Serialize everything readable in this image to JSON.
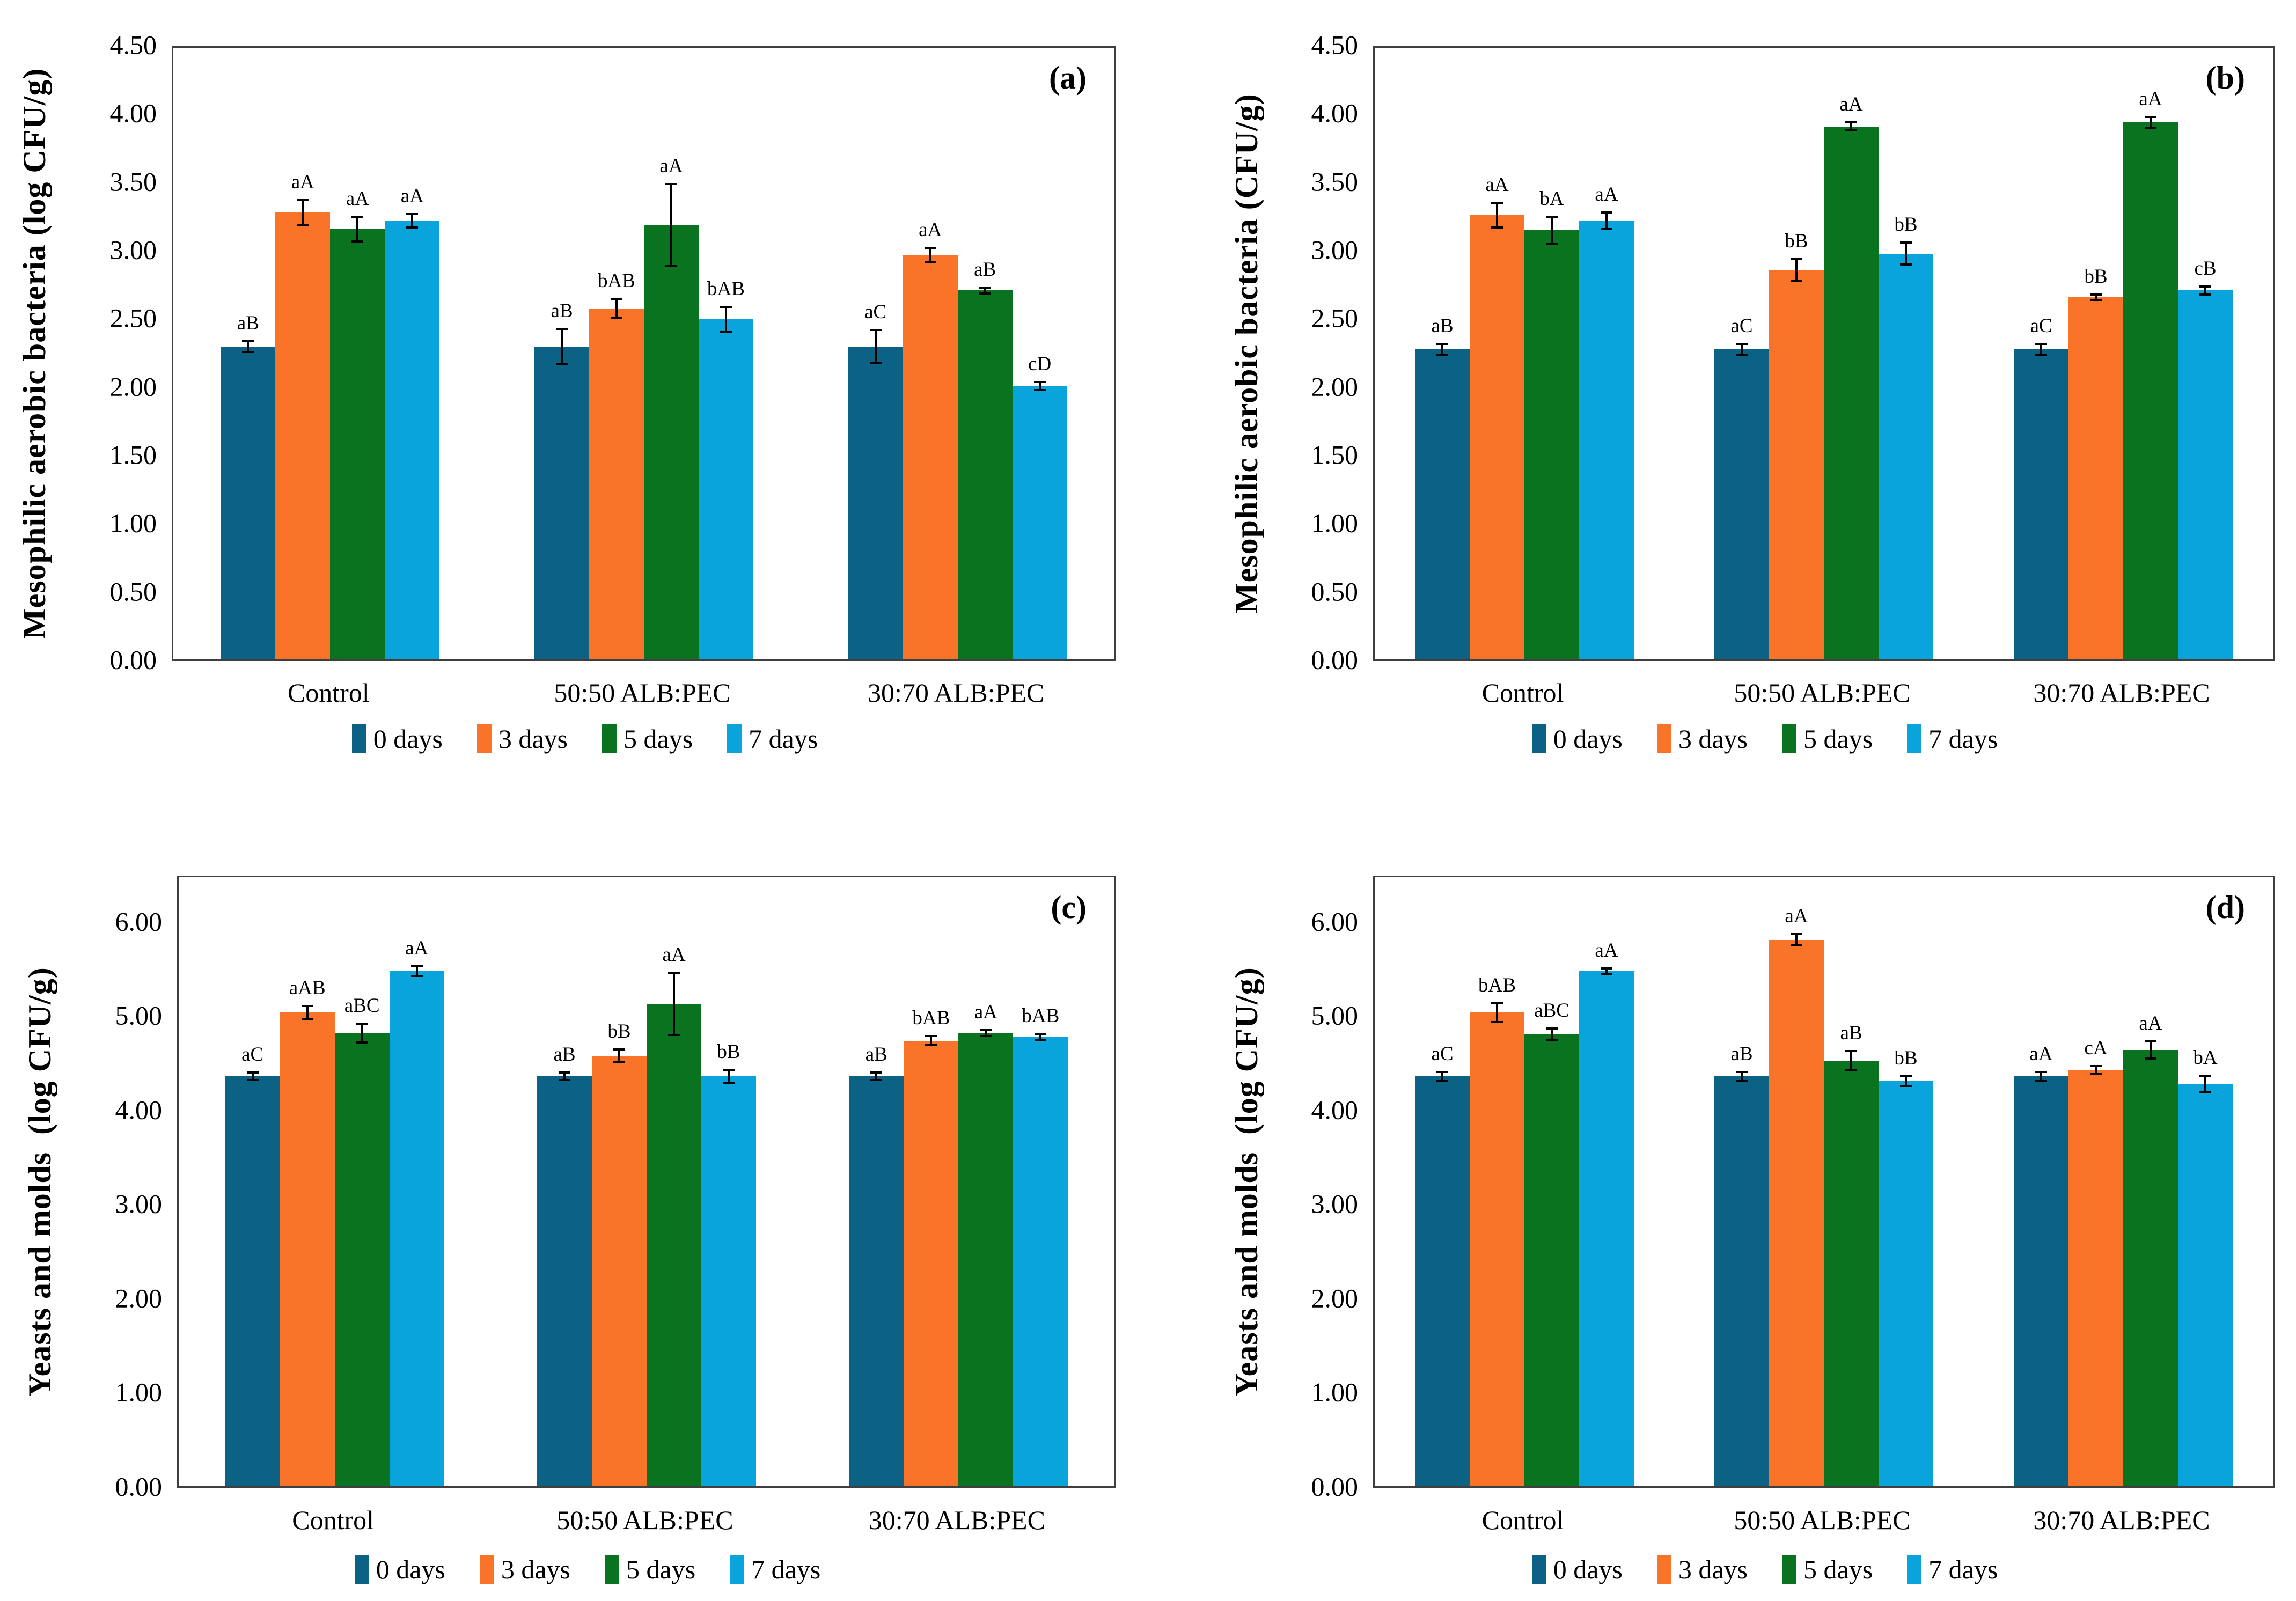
{
  "figure": {
    "background_color": "#ffffff",
    "frame_color": "#3f3f3f",
    "error_bar_color": "#000000"
  },
  "chart_data": [
    {
      "id": "a",
      "panel_label": "(a)",
      "type": "bar",
      "ylabel": "Mesophilic aerobic bacteria (log CFU/g)",
      "xlabel": "",
      "ylim": [
        0,
        4.5
      ],
      "ytick_values": [
        4.5,
        4.0,
        3.5,
        3.0,
        2.5,
        2.0,
        1.5,
        1.0,
        0.5,
        0.0
      ],
      "grid": false,
      "legend_position": "bottom",
      "categories": [
        "Control",
        "50:50 ALB:PEC",
        "30:70 ALB:PEC"
      ],
      "series": [
        {
          "name": "0 days",
          "color": "#0C6284",
          "values": [
            2.29,
            2.29,
            2.29
          ],
          "errors": [
            0.04,
            0.13,
            0.12
          ],
          "sig_labels": [
            "aB",
            "aB",
            "aC"
          ]
        },
        {
          "name": "3 days",
          "color": "#F97428",
          "values": [
            3.27,
            2.57,
            2.96
          ],
          "errors": [
            0.09,
            0.07,
            0.05
          ],
          "sig_labels": [
            "aA",
            "bAB",
            "aA"
          ]
        },
        {
          "name": "5 days",
          "color": "#097320",
          "values": [
            3.15,
            3.18,
            2.7
          ],
          "errors": [
            0.09,
            0.3,
            0.02
          ],
          "sig_labels": [
            "aA",
            "aA",
            "aB"
          ]
        },
        {
          "name": "7 days",
          "color": "#09A4DC",
          "values": [
            3.21,
            2.49,
            2.0
          ],
          "errors": [
            0.05,
            0.09,
            0.03
          ],
          "sig_labels": [
            "aA",
            "bAB",
            "cD"
          ]
        }
      ]
    },
    {
      "id": "b",
      "panel_label": "(b)",
      "type": "bar",
      "ylabel": "Mesophilic aerobic bacteria (CFU/g)",
      "xlabel": "",
      "ylim": [
        0,
        4.5
      ],
      "ytick_values": [
        4.5,
        4.0,
        3.5,
        3.0,
        2.5,
        2.0,
        1.5,
        1.0,
        0.5,
        0.0
      ],
      "grid": false,
      "legend_position": "bottom",
      "categories": [
        "Control",
        "50:50 ALB:PEC",
        "30:70 ALB:PEC"
      ],
      "series": [
        {
          "name": "0 days",
          "color": "#0C6284",
          "values": [
            2.27,
            2.27,
            2.27
          ],
          "errors": [
            0.04,
            0.04,
            0.04
          ],
          "sig_labels": [
            "aB",
            "aC",
            "aC"
          ]
        },
        {
          "name": "3 days",
          "color": "#F97428",
          "values": [
            3.25,
            2.85,
            2.65
          ],
          "errors": [
            0.09,
            0.08,
            0.02
          ],
          "sig_labels": [
            "aA",
            "bB",
            "bB"
          ]
        },
        {
          "name": "5 days",
          "color": "#097320",
          "values": [
            3.14,
            3.9,
            3.93
          ],
          "errors": [
            0.1,
            0.03,
            0.04
          ],
          "sig_labels": [
            "bA",
            "aA",
            "aA"
          ]
        },
        {
          "name": "7 days",
          "color": "#09A4DC",
          "values": [
            3.21,
            2.97,
            2.7
          ],
          "errors": [
            0.06,
            0.08,
            0.03
          ],
          "sig_labels": [
            "aA",
            "bB",
            "cB"
          ]
        }
      ]
    },
    {
      "id": "c",
      "panel_label": "(c)",
      "type": "bar",
      "ylabel": "Yeasts and molds  (log CFU/g)",
      "xlabel": "",
      "ylim": [
        0,
        6.5
      ],
      "ytick_values": [
        6.0,
        5.0,
        4.0,
        3.0,
        2.0,
        1.0,
        0.0
      ],
      "grid": false,
      "legend_position": "bottom",
      "categories": [
        "Control",
        "50:50 ALB:PEC",
        "30:70 ALB:PEC"
      ],
      "series": [
        {
          "name": "0 days",
          "color": "#0C6284",
          "values": [
            4.35,
            4.35,
            4.35
          ],
          "errors": [
            0.04,
            0.04,
            0.04
          ],
          "sig_labels": [
            "aC",
            "aB",
            "aB"
          ]
        },
        {
          "name": "3 days",
          "color": "#F97428",
          "values": [
            5.03,
            4.57,
            4.73
          ],
          "errors": [
            0.07,
            0.07,
            0.05
          ],
          "sig_labels": [
            "aAB",
            "bB",
            "bAB"
          ]
        },
        {
          "name": "5 days",
          "color": "#097320",
          "values": [
            4.81,
            5.12,
            4.81
          ],
          "errors": [
            0.1,
            0.33,
            0.03
          ],
          "sig_labels": [
            "aBC",
            "aA",
            "aA"
          ]
        },
        {
          "name": "7 days",
          "color": "#09A4DC",
          "values": [
            5.47,
            4.35,
            4.77
          ],
          "errors": [
            0.05,
            0.07,
            0.03
          ],
          "sig_labels": [
            "aA",
            "bB",
            "bAB"
          ]
        }
      ]
    },
    {
      "id": "d",
      "panel_label": "(d)",
      "type": "bar",
      "ylabel": "Yeasts and molds  (log CFU/g)",
      "xlabel": "",
      "ylim": [
        0,
        6.5
      ],
      "ytick_values": [
        6.0,
        5.0,
        4.0,
        3.0,
        2.0,
        1.0,
        0.0
      ],
      "grid": false,
      "legend_position": "bottom",
      "categories": [
        "Control",
        "50:50 ALB:PEC",
        "30:70 ALB:PEC"
      ],
      "series": [
        {
          "name": "0 days",
          "color": "#0C6284",
          "values": [
            4.35,
            4.35,
            4.35
          ],
          "errors": [
            0.05,
            0.05,
            0.05
          ],
          "sig_labels": [
            "aC",
            "aB",
            "aA"
          ]
        },
        {
          "name": "3 days",
          "color": "#F97428",
          "values": [
            5.03,
            5.8,
            4.42
          ],
          "errors": [
            0.1,
            0.06,
            0.04
          ],
          "sig_labels": [
            "bAB",
            "aA",
            "cA"
          ]
        },
        {
          "name": "5 days",
          "color": "#097320",
          "values": [
            4.8,
            4.52,
            4.63
          ],
          "errors": [
            0.06,
            0.1,
            0.09
          ],
          "sig_labels": [
            "aBC",
            "aB",
            "aA"
          ]
        },
        {
          "name": "7 days",
          "color": "#09A4DC",
          "values": [
            5.47,
            4.3,
            4.27
          ],
          "errors": [
            0.03,
            0.05,
            0.09
          ],
          "sig_labels": [
            "aA",
            "bB",
            "bA"
          ]
        }
      ]
    }
  ]
}
